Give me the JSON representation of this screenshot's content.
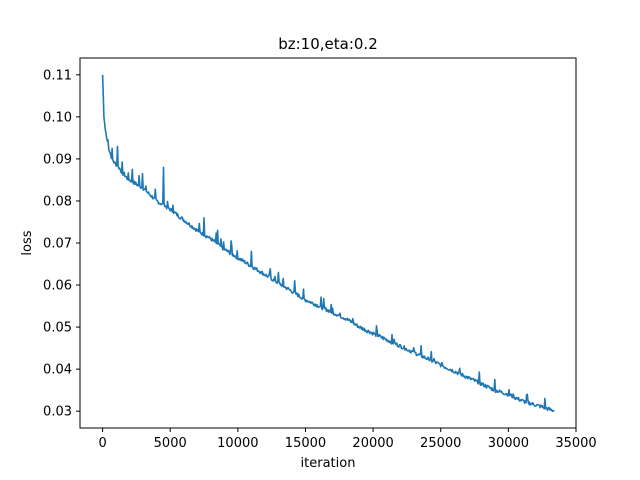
{
  "chart_data": {
    "type": "line",
    "title": "bz:10,eta:0.2",
    "xlabel": "iteration",
    "ylabel": "loss",
    "xlim": [
      -1670,
      35000
    ],
    "ylim": [
      0.026,
      0.114
    ],
    "x_ticks": [
      0,
      5000,
      10000,
      15000,
      20000,
      25000,
      30000,
      35000
    ],
    "y_ticks": [
      0.03,
      0.04,
      0.05,
      0.06,
      0.07,
      0.08,
      0.09,
      0.1,
      0.11
    ],
    "y_tick_labels": [
      "0.03",
      "0.04",
      "0.05",
      "0.06",
      "0.07",
      "0.08",
      "0.09",
      "0.10",
      "0.11"
    ],
    "grid": false,
    "legend": "none",
    "series": [
      {
        "color": "#1f77b4",
        "x": [
          0,
          100,
          200,
          300,
          500,
          700,
          900,
          1200,
          1600,
          2000,
          2500,
          3000,
          3500,
          4000,
          4500,
          5000,
          6000,
          7000,
          8000,
          9000,
          10000,
          11000,
          12000,
          13000,
          14000,
          15000,
          16000,
          17000,
          18000,
          19000,
          20000,
          21000,
          22000,
          23000,
          24000,
          25000,
          26000,
          27000,
          28000,
          29000,
          30000,
          31000,
          32000,
          33000,
          33400
        ],
        "y": [
          0.11,
          0.1,
          0.097,
          0.095,
          0.092,
          0.09,
          0.089,
          0.088,
          0.086,
          0.085,
          0.084,
          0.083,
          0.0815,
          0.08,
          0.079,
          0.078,
          0.0755,
          0.073,
          0.071,
          0.0685,
          0.0665,
          0.0645,
          0.0625,
          0.0605,
          0.0585,
          0.0565,
          0.055,
          0.0535,
          0.052,
          0.05,
          0.0485,
          0.047,
          0.0455,
          0.044,
          0.0425,
          0.041,
          0.0395,
          0.038,
          0.0365,
          0.035,
          0.034,
          0.0325,
          0.0315,
          0.0305,
          0.03
        ],
        "spikes": [
          {
            "x": 400,
            "y": 0.0945
          },
          {
            "x": 700,
            "y": 0.0925
          },
          {
            "x": 1100,
            "y": 0.093
          },
          {
            "x": 2200,
            "y": 0.0875
          },
          {
            "x": 2700,
            "y": 0.086
          },
          {
            "x": 2950,
            "y": 0.0865
          },
          {
            "x": 4500,
            "y": 0.088
          },
          {
            "x": 5200,
            "y": 0.079
          },
          {
            "x": 7500,
            "y": 0.076
          },
          {
            "x": 8500,
            "y": 0.073
          },
          {
            "x": 9500,
            "y": 0.0705
          },
          {
            "x": 11000,
            "y": 0.068
          },
          {
            "x": 13000,
            "y": 0.063
          },
          {
            "x": 14200,
            "y": 0.061
          },
          {
            "x": 17000,
            "y": 0.0545
          },
          {
            "x": 18500,
            "y": 0.052
          },
          {
            "x": 22500,
            "y": 0.0445
          },
          {
            "x": 24500,
            "y": 0.0425
          },
          {
            "x": 29000,
            "y": 0.0375
          },
          {
            "x": 32700,
            "y": 0.033
          }
        ]
      }
    ]
  }
}
